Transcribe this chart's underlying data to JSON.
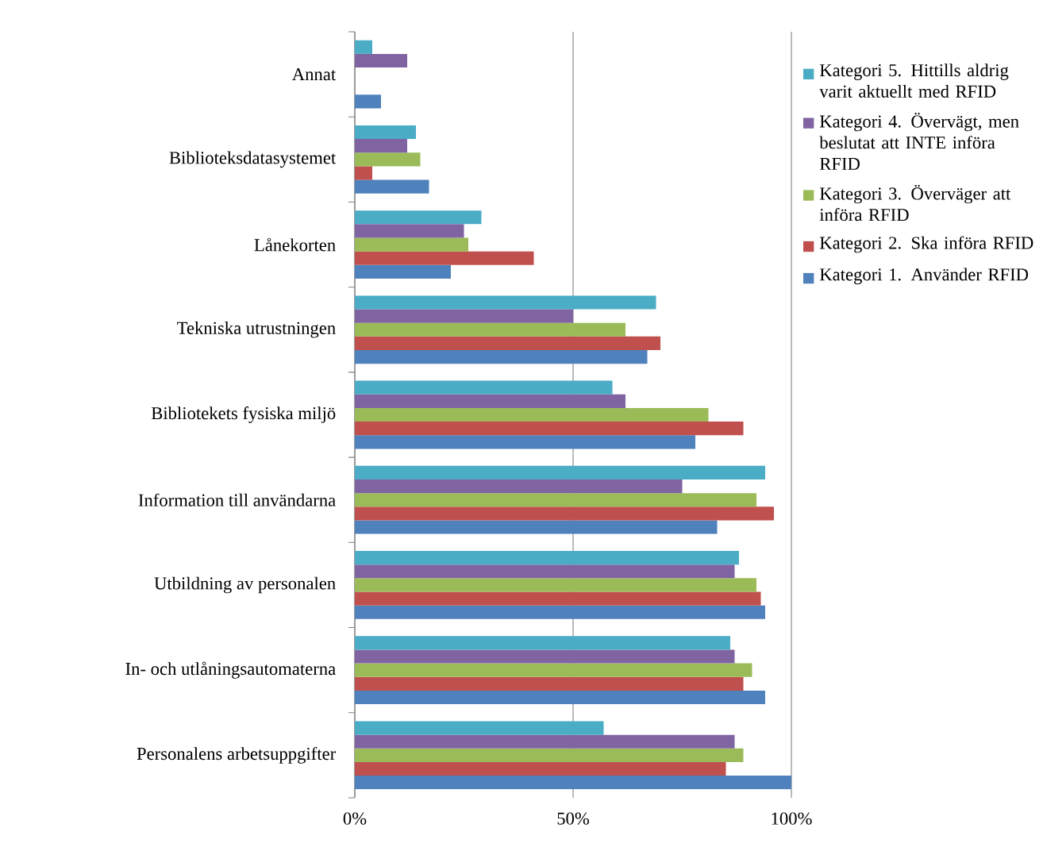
{
  "chart_data": {
    "type": "bar",
    "orientation": "horizontal",
    "categories": [
      "Annat",
      "Biblioteksdatasystemet",
      "Lånekorten",
      "Tekniska utrustningen",
      "Bibliotekets fysiska miljö",
      "Information till användarna",
      "Utbildning av personalen",
      "In- och utlåningsautomaterna",
      "Personalens arbetsuppgifter"
    ],
    "series": [
      {
        "name": "Kategori 1. Använder RFID",
        "color": "#4f81bd",
        "values": [
          6,
          17,
          22,
          67,
          78,
          83,
          94,
          94,
          100
        ]
      },
      {
        "name": "Kategori 2. Ska införa RFID",
        "color": "#c0504d",
        "values": [
          0,
          4,
          41,
          70,
          89,
          96,
          93,
          89,
          85
        ]
      },
      {
        "name": "Kategori 3. Överväger att införa RFID",
        "color": "#9bbb59",
        "values": [
          0,
          15,
          26,
          62,
          81,
          92,
          92,
          91,
          89
        ]
      },
      {
        "name": "Kategori 4. Övervägt, men beslutat att INTE införa RFID",
        "color": "#8064a2",
        "values": [
          12,
          12,
          25,
          50,
          62,
          75,
          87,
          87,
          87
        ]
      },
      {
        "name": "Kategori 5. Hittills aldrig varit aktuellt med RFID",
        "color": "#4bacc6",
        "values": [
          4,
          14,
          29,
          69,
          59,
          94,
          88,
          86,
          57
        ]
      }
    ],
    "xlim": [
      0,
      100
    ],
    "xticks": [
      {
        "value": 0,
        "label": "0%"
      },
      {
        "value": 50,
        "label": "50%"
      },
      {
        "value": 100,
        "label": "100%"
      }
    ],
    "grid": "x",
    "legend": "right"
  }
}
